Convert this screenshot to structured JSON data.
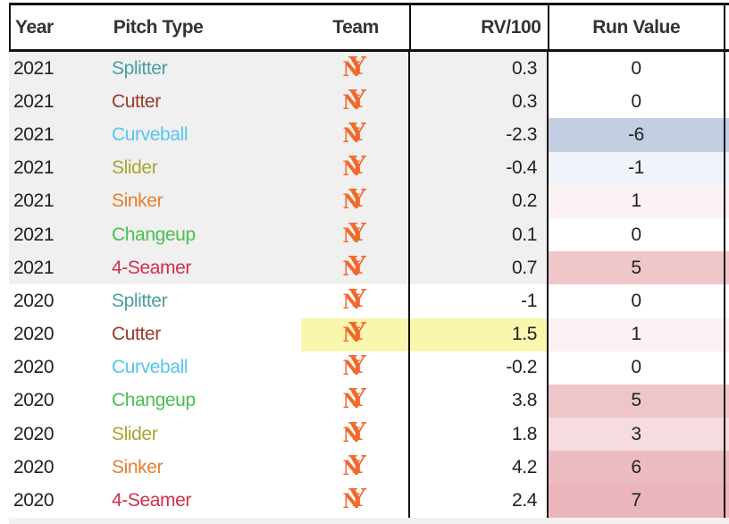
{
  "header": {
    "year": "Year",
    "pitch_type": "Pitch Type",
    "team": "Team",
    "rv100": "RV/100",
    "run_value": "Run Value"
  },
  "team_logo": {
    "name": "New York Mets interlocking NY",
    "letters": {
      "n": "N",
      "y": "Y"
    },
    "color": "#f2692c"
  },
  "highlight_color": "#f9f6ae",
  "row_group_colors": {
    "2021": "#f0f0f0",
    "2020": "#ffffff"
  },
  "rows": [
    {
      "year": "2021",
      "pitch": "Splitter",
      "pitch_color": "#4b9fa1",
      "rv100": "0.3",
      "run_value": "0",
      "run_value_bg": "#ffffff",
      "row_bg": "#f0f0f0",
      "highlight": false
    },
    {
      "year": "2021",
      "pitch": "Cutter",
      "pitch_color": "#99392b",
      "rv100": "0.3",
      "run_value": "0",
      "run_value_bg": "#ffffff",
      "row_bg": "#f0f0f0",
      "highlight": false
    },
    {
      "year": "2021",
      "pitch": "Curveball",
      "pitch_color": "#55c6ec",
      "rv100": "-2.3",
      "run_value": "-6",
      "run_value_bg": "#c3cee3",
      "row_bg": "#f0f0f0",
      "highlight": false
    },
    {
      "year": "2021",
      "pitch": "Slider",
      "pitch_color": "#a9a433",
      "rv100": "-0.4",
      "run_value": "-1",
      "run_value_bg": "#f0f3f9",
      "row_bg": "#f0f0f0",
      "highlight": false
    },
    {
      "year": "2021",
      "pitch": "Sinker",
      "pitch_color": "#e87e2d",
      "rv100": "0.2",
      "run_value": "1",
      "run_value_bg": "#fcf2f3",
      "row_bg": "#f0f0f0",
      "highlight": false
    },
    {
      "year": "2021",
      "pitch": "Changeup",
      "pitch_color": "#47c14f",
      "rv100": "0.1",
      "run_value": "0",
      "run_value_bg": "#ffffff",
      "row_bg": "#f0f0f0",
      "highlight": false
    },
    {
      "year": "2021",
      "pitch": "4-Seamer",
      "pitch_color": "#d1304a",
      "rv100": "0.7",
      "run_value": "5",
      "run_value_bg": "#efc6ca",
      "row_bg": "#f0f0f0",
      "highlight": false
    },
    {
      "year": "2020",
      "pitch": "Splitter",
      "pitch_color": "#4b9fa1",
      "rv100": "-1",
      "run_value": "0",
      "run_value_bg": "#ffffff",
      "row_bg": "#ffffff",
      "highlight": false
    },
    {
      "year": "2020",
      "pitch": "Cutter",
      "pitch_color": "#99392b",
      "rv100": "1.5",
      "run_value": "1",
      "run_value_bg": "#fcf2f3",
      "row_bg": "#ffffff",
      "highlight": true
    },
    {
      "year": "2020",
      "pitch": "Curveball",
      "pitch_color": "#55c6ec",
      "rv100": "-0.2",
      "run_value": "0",
      "run_value_bg": "#ffffff",
      "row_bg": "#ffffff",
      "highlight": false
    },
    {
      "year": "2020",
      "pitch": "Changeup",
      "pitch_color": "#47c14f",
      "rv100": "3.8",
      "run_value": "5",
      "run_value_bg": "#eec5c9",
      "row_bg": "#ffffff",
      "highlight": false
    },
    {
      "year": "2020",
      "pitch": "Slider",
      "pitch_color": "#a9a433",
      "rv100": "1.8",
      "run_value": "3",
      "run_value_bg": "#f6dcdf",
      "row_bg": "#ffffff",
      "highlight": false
    },
    {
      "year": "2020",
      "pitch": "Sinker",
      "pitch_color": "#e87e2d",
      "rv100": "4.2",
      "run_value": "6",
      "run_value_bg": "#edbcc3",
      "row_bg": "#ffffff",
      "highlight": false
    },
    {
      "year": "2020",
      "pitch": "4-Seamer",
      "pitch_color": "#d1304a",
      "rv100": "2.4",
      "run_value": "7",
      "run_value_bg": "#ebb5bd",
      "row_bg": "#ffffff",
      "highlight": false
    }
  ]
}
